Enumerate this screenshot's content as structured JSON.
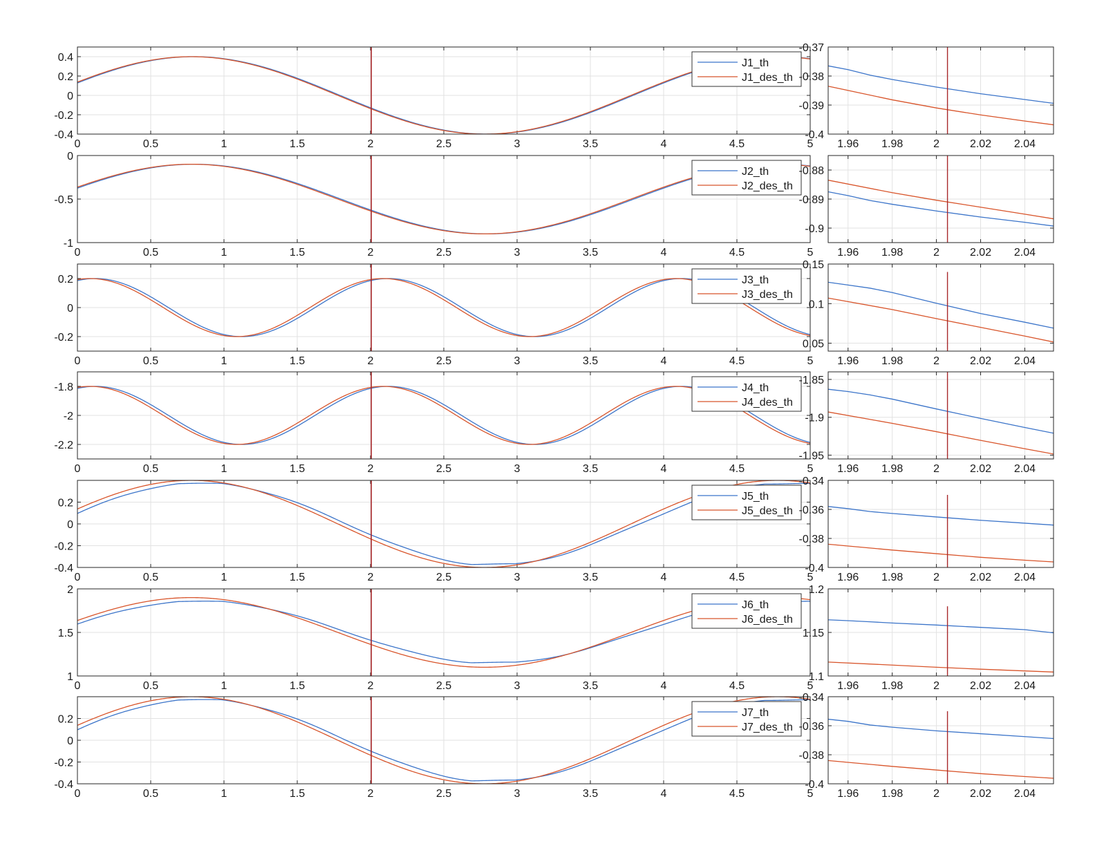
{
  "colors": {
    "measured": "#3b74c9",
    "desired": "#d8542a",
    "marker": "#a8282a",
    "grid": "#e2e2e2",
    "axis": "#262626"
  },
  "main_x": {
    "ticks": [
      0,
      0.5,
      1,
      1.5,
      2,
      2.5,
      3,
      3.5,
      4,
      4.5,
      5
    ],
    "tick_labels": [
      "0",
      "0.5",
      "1",
      "1.5",
      "2",
      "2.5",
      "3",
      "3.5",
      "4",
      "4.5",
      "5"
    ],
    "xlim": [
      0,
      5
    ]
  },
  "zoom_x": {
    "ticks": [
      1.96,
      1.98,
      2,
      2.02,
      2.04
    ],
    "tick_labels": [
      "1.96",
      "1.98",
      "2",
      "2.02",
      "2.04"
    ],
    "xlim": [
      1.951,
      2.053
    ]
  },
  "marker_x": {
    "main": 2.005,
    "zoom": 2.005
  },
  "chart_data": [
    {
      "type": "line",
      "joint": "J1",
      "legend": [
        "J1_th",
        "J1_des_th"
      ],
      "main": {
        "ylim": [
          -0.4,
          0.5
        ],
        "yticks": [
          -0.4,
          -0.2,
          0,
          0.2,
          0.4
        ],
        "ytick_labels": [
          "-0.4",
          "-0.2",
          "0",
          "0.2",
          "0.4"
        ],
        "desired": {
          "amp": 0.4,
          "freq": 0.25,
          "phase": 0.35,
          "offset": 0
        },
        "measured": {
          "amp": 0.4,
          "freq": 0.25,
          "phase": 0.35,
          "offset": 0,
          "lag": 0.015
        }
      },
      "zoom": {
        "ylim": [
          -0.4,
          -0.37
        ],
        "yticks": [
          -0.4,
          -0.39,
          -0.38,
          -0.37
        ],
        "ytick_labels": [
          "-0.4",
          "-0.39",
          "-0.38",
          "-0.37"
        ],
        "marker_ylim": [
          -0.4,
          -0.37
        ],
        "series": [
          {
            "name": "J1_th",
            "x": [
              1.951,
              1.96,
              1.97,
              1.98,
              2.0,
              2.02,
              2.04,
              2.053
            ],
            "y": [
              -0.3765,
              -0.3778,
              -0.3797,
              -0.3812,
              -0.3838,
              -0.3861,
              -0.3881,
              -0.3894
            ]
          },
          {
            "name": "J1_des_th",
            "x": [
              1.951,
              1.98,
              2.0,
              2.02,
              2.04,
              2.053
            ],
            "y": [
              -0.3835,
              -0.3882,
              -0.391,
              -0.3934,
              -0.3955,
              -0.3968
            ]
          }
        ]
      }
    },
    {
      "type": "line",
      "joint": "J2",
      "legend": [
        "J2_th",
        "J2_des_th"
      ],
      "main": {
        "ylim": [
          -1,
          0
        ],
        "yticks": [
          -1,
          -0.5,
          0
        ],
        "ytick_labels": [
          "-1",
          "-0.5",
          "0"
        ],
        "desired": {
          "amp": 0.4,
          "freq": 0.25,
          "phase": 0.35,
          "offset": -0.5
        },
        "measured": {
          "amp": 0.4,
          "freq": 0.25,
          "phase": 0.35,
          "offset": -0.5,
          "lag": 0.02
        }
      },
      "zoom": {
        "ylim": [
          -0.905,
          -0.875
        ],
        "yticks": [
          -0.9,
          -0.89,
          -0.88
        ],
        "ytick_labels": [
          "-0.9",
          "-0.89",
          "-0.88"
        ],
        "marker_ylim": [
          -0.905,
          -0.875
        ],
        "series": [
          {
            "name": "J2_th",
            "x": [
              1.951,
              1.96,
              1.97,
              1.98,
              2.0,
              2.02,
              2.04,
              2.053
            ],
            "y": [
              -0.8875,
              -0.8888,
              -0.8905,
              -0.8918,
              -0.8941,
              -0.8962,
              -0.898,
              -0.8993
            ]
          },
          {
            "name": "J2_des_th",
            "x": [
              1.951,
              1.98,
              2.0,
              2.02,
              2.04,
              2.053
            ],
            "y": [
              -0.8835,
              -0.8878,
              -0.8904,
              -0.8928,
              -0.8952,
              -0.8968
            ]
          }
        ]
      }
    },
    {
      "type": "line",
      "joint": "J3",
      "legend": [
        "J3_th",
        "J3_des_th"
      ],
      "main": {
        "ylim": [
          -0.3,
          0.3
        ],
        "yticks": [
          -0.2,
          0,
          0.2
        ],
        "ytick_labels": [
          "-0.2",
          "0",
          "0.2"
        ],
        "desired": {
          "amp": 0.2,
          "freq": 0.5,
          "phase": 1.3,
          "offset": 0
        },
        "measured": {
          "amp": 0.2,
          "freq": 0.5,
          "phase": 1.3,
          "offset": 0,
          "lag": 0.035
        }
      },
      "zoom": {
        "ylim": [
          0.04,
          0.15
        ],
        "yticks": [
          0.05,
          0.1,
          0.15
        ],
        "ytick_labels": [
          "0.05",
          "0.1",
          "0.15"
        ],
        "marker_ylim": [
          0.04,
          0.14
        ],
        "series": [
          {
            "name": "J3_th",
            "x": [
              1.951,
              1.96,
              1.97,
              1.98,
              2.0,
              2.02,
              2.04,
              2.053
            ],
            "y": [
              0.127,
              0.1235,
              0.1195,
              0.114,
              0.1005,
              0.0875,
              0.0765,
              0.069
            ]
          },
          {
            "name": "J3_des_th",
            "x": [
              1.951,
              1.98,
              2.0,
              2.02,
              2.04,
              2.053
            ],
            "y": [
              0.107,
              0.0925,
              0.081,
              0.07,
              0.059,
              0.0515
            ]
          }
        ]
      }
    },
    {
      "type": "line",
      "joint": "J4",
      "legend": [
        "J4_th",
        "J4_des_th"
      ],
      "main": {
        "ylim": [
          -2.3,
          -1.7
        ],
        "yticks": [
          -2.2,
          -2,
          -1.8
        ],
        "ytick_labels": [
          "-2.2",
          "-2",
          "-1.8"
        ],
        "desired": {
          "amp": 0.2,
          "freq": 0.5,
          "phase": 1.3,
          "offset": -2.0
        },
        "measured": {
          "amp": 0.2,
          "freq": 0.5,
          "phase": 1.3,
          "offset": -2.0,
          "lag": 0.035
        }
      },
      "zoom": {
        "ylim": [
          -1.955,
          -1.84
        ],
        "yticks": [
          -1.95,
          -1.9,
          -1.85
        ],
        "ytick_labels": [
          "-1.95",
          "-1.9",
          "-1.85"
        ],
        "marker_ylim": [
          -1.955,
          -1.84
        ],
        "series": [
          {
            "name": "J4_th",
            "x": [
              1.951,
              1.96,
              1.97,
              1.98,
              2.0,
              2.02,
              2.04,
              2.053
            ],
            "y": [
              -1.863,
              -1.866,
              -1.8705,
              -1.876,
              -1.889,
              -1.9015,
              -1.9135,
              -1.921
            ]
          },
          {
            "name": "J4_des_th",
            "x": [
              1.951,
              1.98,
              2.0,
              2.02,
              2.04,
              2.053
            ],
            "y": [
              -1.893,
              -1.908,
              -1.919,
              -1.9305,
              -1.9415,
              -1.9485
            ]
          }
        ]
      }
    },
    {
      "type": "line",
      "joint": "J5",
      "legend": [
        "J5_th",
        "J5_des_th"
      ],
      "main": {
        "ylim": [
          -0.4,
          0.4
        ],
        "yticks": [
          -0.4,
          -0.2,
          0,
          0.2
        ],
        "ytick_labels": [
          "-0.4",
          "-0.2",
          "0",
          "0.2"
        ],
        "desired": {
          "amp": 0.4,
          "freq": 0.25,
          "phase": 0.35,
          "offset": 0
        },
        "measured": {
          "amp": 0.38,
          "freq": 0.25,
          "phase": 0.35,
          "offset": 0,
          "lag": 0.06,
          "sat": 0.37
        }
      },
      "zoom": {
        "ylim": [
          -0.4,
          -0.34
        ],
        "yticks": [
          -0.4,
          -0.38,
          -0.36,
          -0.34
        ],
        "ytick_labels": [
          "-0.4",
          "-0.38",
          "-0.36",
          "-0.34"
        ],
        "marker_ylim": [
          -0.4,
          -0.35
        ],
        "series": [
          {
            "name": "J5_th",
            "x": [
              1.951,
              1.96,
              1.97,
              1.98,
              2.0,
              2.02,
              2.04,
              2.053
            ],
            "y": [
              -0.358,
              -0.3595,
              -0.3615,
              -0.3628,
              -0.3652,
              -0.3675,
              -0.3695,
              -0.3708
            ]
          },
          {
            "name": "J5_des_th",
            "x": [
              1.951,
              1.98,
              2.0,
              2.02,
              2.04,
              2.053
            ],
            "y": [
              -0.384,
              -0.388,
              -0.3905,
              -0.393,
              -0.395,
              -0.3962
            ]
          }
        ]
      }
    },
    {
      "type": "line",
      "joint": "J6",
      "legend": [
        "J6_th",
        "J6_des_th"
      ],
      "main": {
        "ylim": [
          1,
          2
        ],
        "yticks": [
          1,
          1.5,
          2
        ],
        "ytick_labels": [
          "1",
          "1.5",
          "2"
        ],
        "desired": {
          "amp": 0.4,
          "freq": 0.25,
          "phase": 0.35,
          "offset": 1.5
        },
        "measured": {
          "amp": 0.36,
          "freq": 0.25,
          "phase": 0.35,
          "offset": 1.505,
          "lag": 0.06,
          "sat": 0.35
        }
      },
      "zoom": {
        "ylim": [
          1.1,
          1.2
        ],
        "yticks": [
          1.1,
          1.15,
          1.2
        ],
        "ytick_labels": [
          "1.1",
          "1.15",
          "1.2"
        ],
        "marker_ylim": [
          1.1,
          1.18
        ],
        "series": [
          {
            "name": "J6_th",
            "x": [
              1.951,
              1.96,
              1.97,
              1.98,
              2.0,
              2.02,
              2.04,
              2.053
            ],
            "y": [
              1.1645,
              1.1635,
              1.1622,
              1.1608,
              1.1585,
              1.1558,
              1.1532,
              1.1495
            ]
          },
          {
            "name": "J6_des_th",
            "x": [
              1.951,
              1.98,
              2.0,
              2.02,
              2.04,
              2.053
            ],
            "y": [
              1.116,
              1.1125,
              1.11,
              1.1078,
              1.1058,
              1.1045
            ]
          }
        ]
      }
    },
    {
      "type": "line",
      "joint": "J7",
      "legend": [
        "J7_th",
        "J7_des_th"
      ],
      "main": {
        "ylim": [
          -0.4,
          0.4
        ],
        "yticks": [
          -0.4,
          -0.2,
          0,
          0.2
        ],
        "ytick_labels": [
          "-0.4",
          "-0.2",
          "0",
          "0.2"
        ],
        "desired": {
          "amp": 0.4,
          "freq": 0.25,
          "phase": 0.35,
          "offset": 0
        },
        "measured": {
          "amp": 0.38,
          "freq": 0.25,
          "phase": 0.35,
          "offset": 0,
          "lag": 0.06,
          "sat": 0.37
        }
      },
      "zoom": {
        "ylim": [
          -0.4,
          -0.34
        ],
        "yticks": [
          -0.4,
          -0.38,
          -0.36,
          -0.34
        ],
        "ytick_labels": [
          "-0.4",
          "-0.38",
          "-0.36",
          "-0.34"
        ],
        "marker_ylim": [
          -0.4,
          -0.35
        ],
        "series": [
          {
            "name": "J7_th",
            "x": [
              1.951,
              1.96,
              1.97,
              1.98,
              2.0,
              2.02,
              2.04,
              2.053
            ],
            "y": [
              -0.3555,
              -0.357,
              -0.3595,
              -0.361,
              -0.3635,
              -0.3655,
              -0.3675,
              -0.3688
            ]
          },
          {
            "name": "J7_des_th",
            "x": [
              1.951,
              1.98,
              2.0,
              2.02,
              2.04,
              2.053
            ],
            "y": [
              -0.384,
              -0.388,
              -0.3905,
              -0.393,
              -0.395,
              -0.3962
            ]
          }
        ]
      }
    }
  ]
}
